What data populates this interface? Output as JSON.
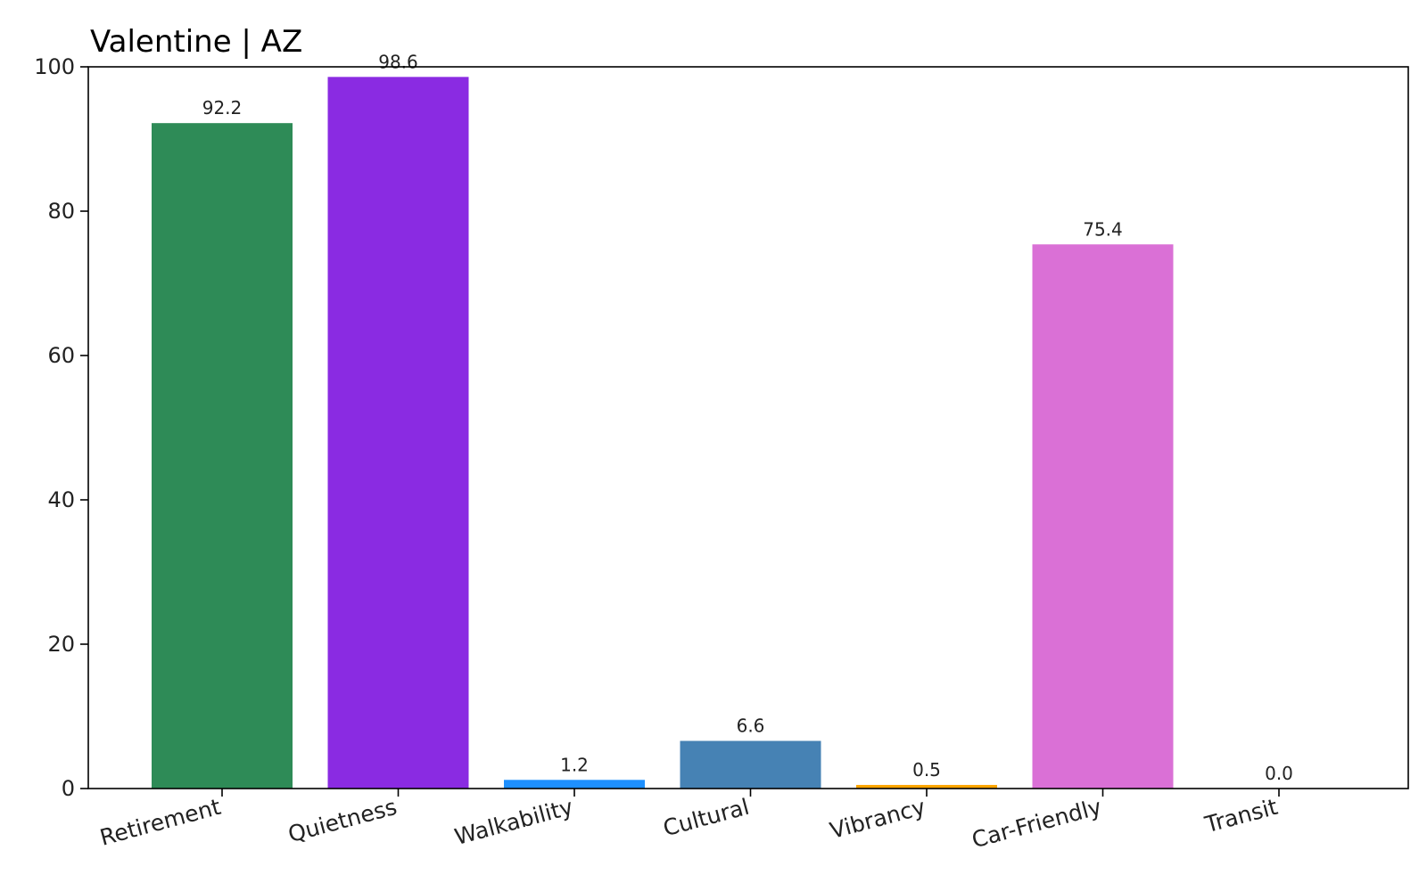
{
  "chart_data": {
    "type": "bar",
    "title": "Valentine | AZ",
    "xlabel": "",
    "ylabel": "",
    "categories": [
      "Retirement",
      "Quietness",
      "Walkability",
      "Cultural",
      "Vibrancy",
      "Car-Friendly",
      "Transit"
    ],
    "values": [
      92.2,
      98.6,
      1.2,
      6.6,
      0.5,
      75.4,
      0.0
    ],
    "value_labels": [
      "92.2",
      "98.6",
      "1.2",
      "6.6",
      "0.5",
      "75.4",
      "0.0"
    ],
    "colors": [
      "#2e8b57",
      "#8a2be2",
      "#1e90ff",
      "#4682b4",
      "#ffa500",
      "#da70d6",
      "#708090"
    ],
    "ylim": [
      0,
      100
    ],
    "yticks": [
      0,
      20,
      40,
      60,
      80,
      100
    ],
    "ytick_labels": [
      "0",
      "20",
      "40",
      "60",
      "80",
      "100"
    ],
    "grid": false,
    "legend": "none"
  }
}
